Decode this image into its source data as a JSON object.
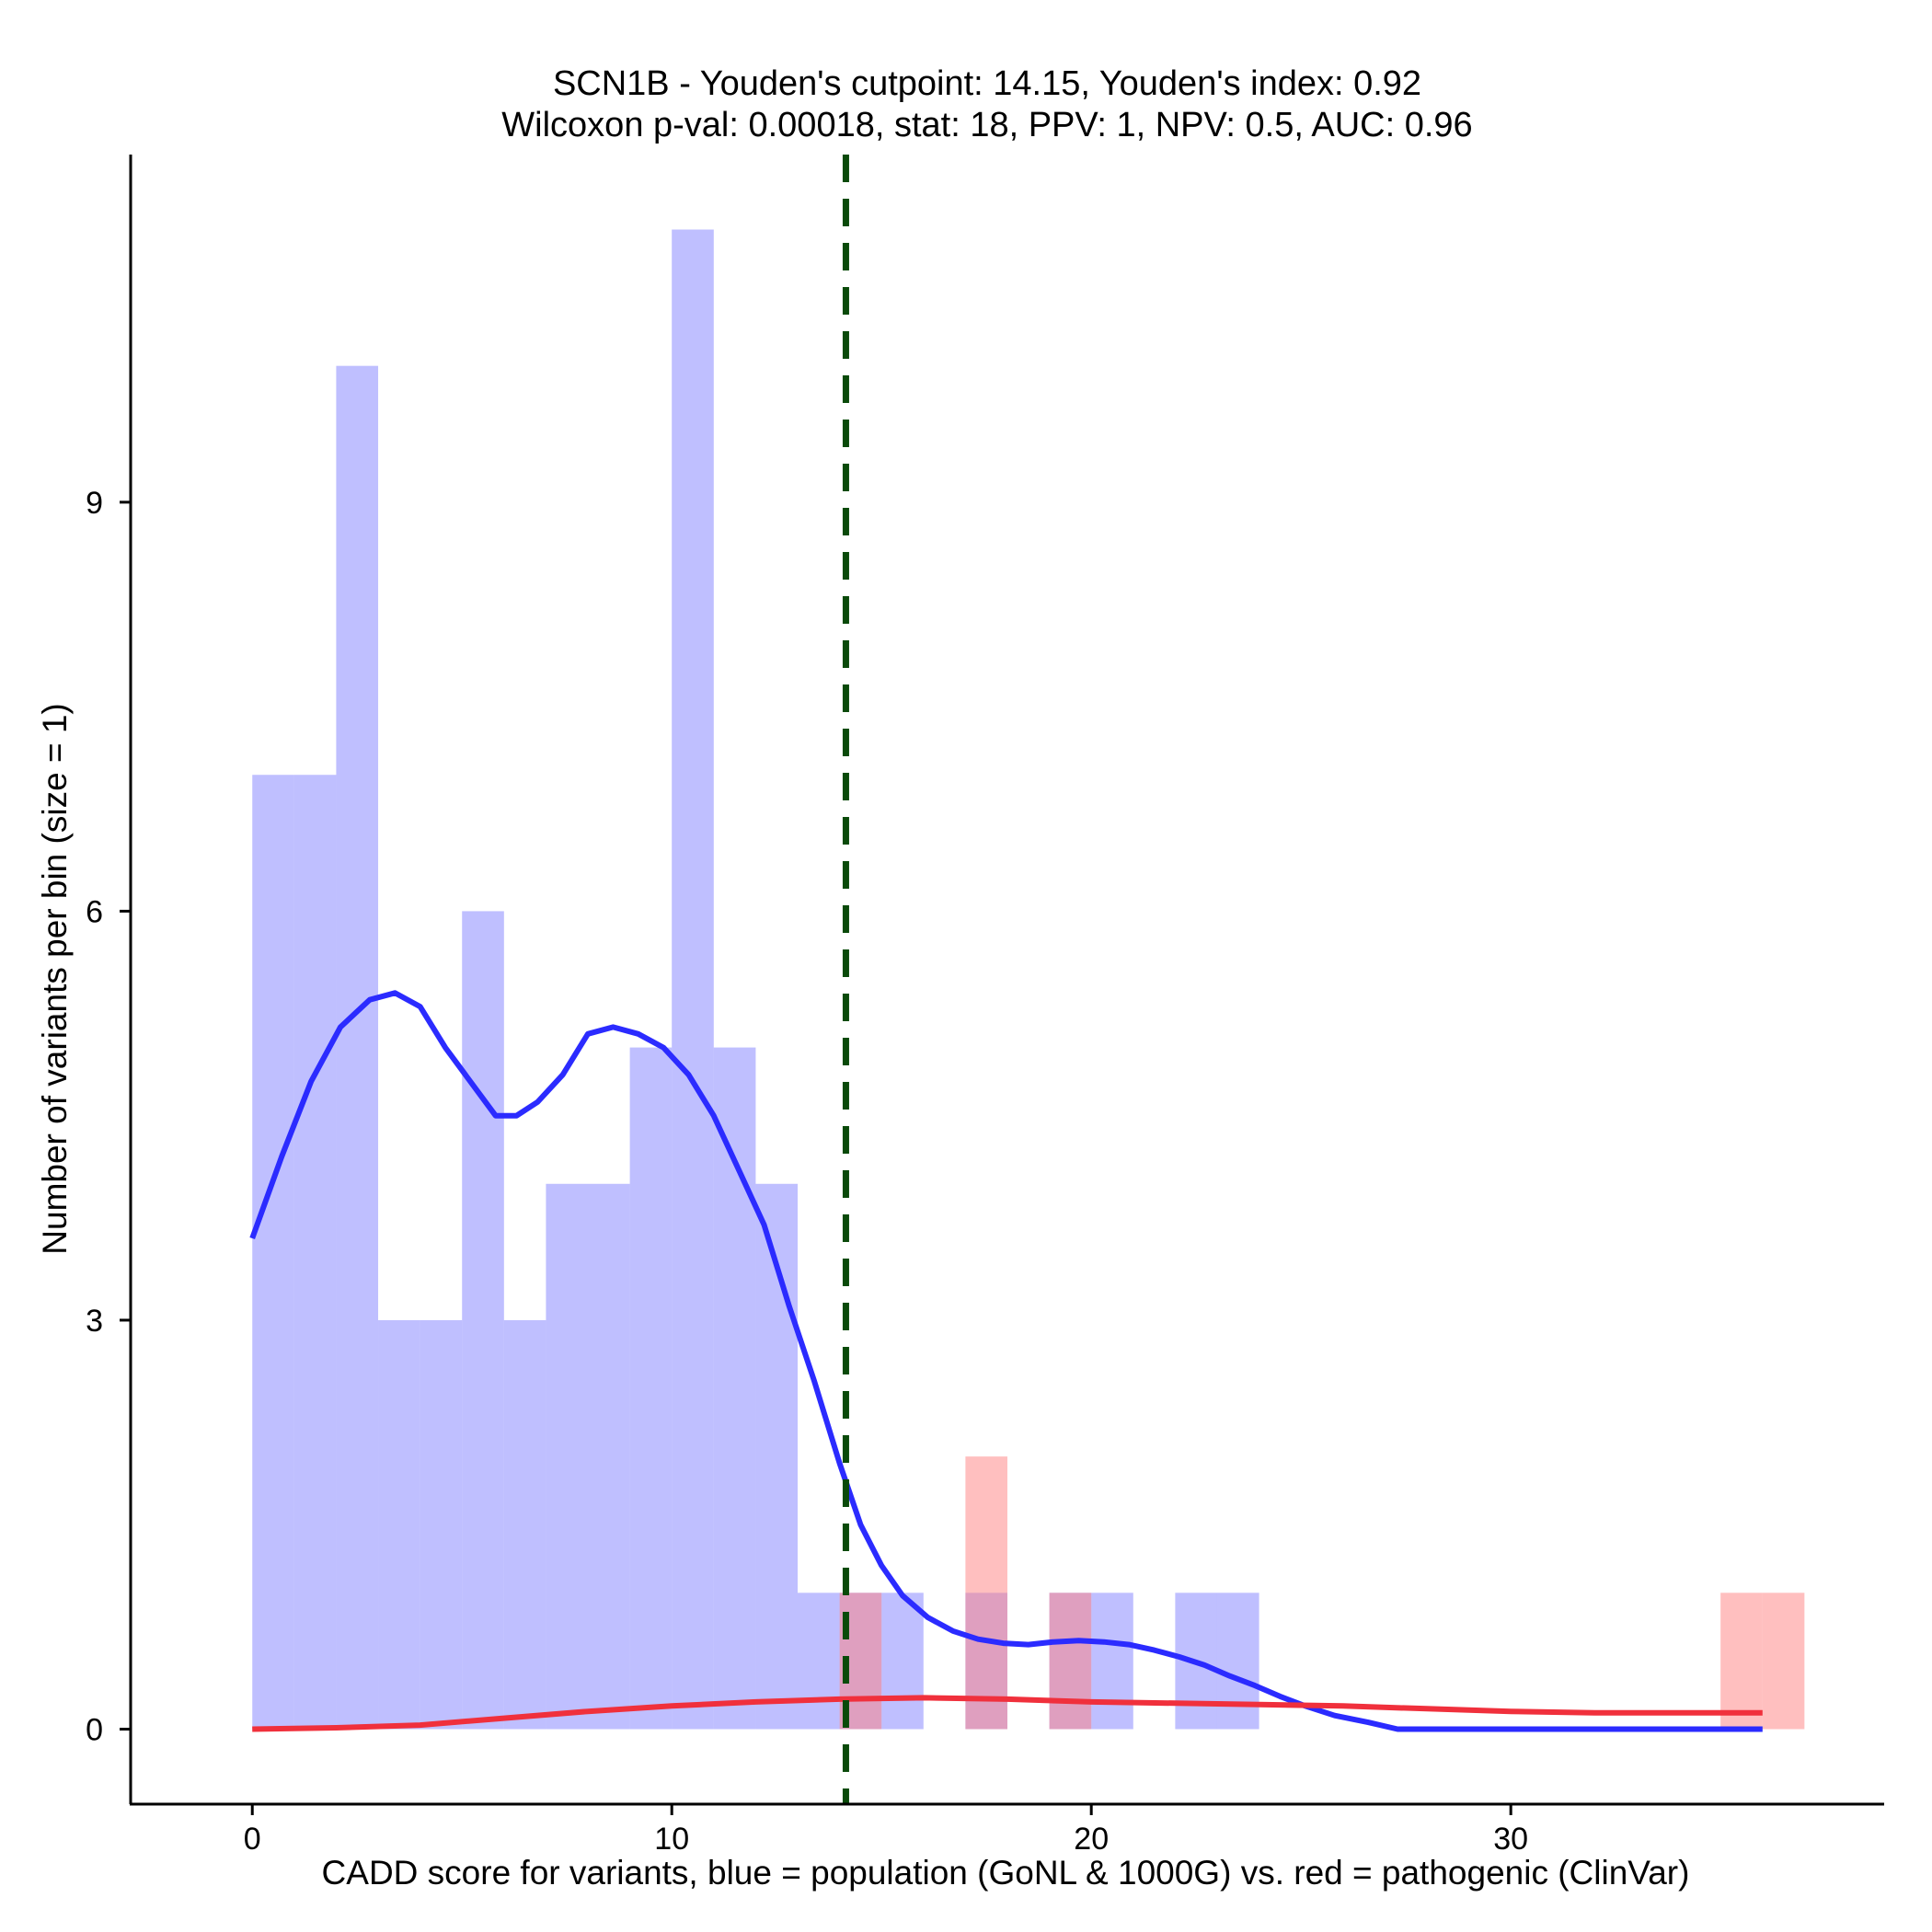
{
  "chart_data": {
    "type": "bar",
    "title": "SCN1B - Youden's cutpoint: 14.15, Youden's index: 0.92",
    "subtitle": "Wilcoxon p-val: 0.00018, stat: 18, PPV: 1, NPV: 0.5, AUC: 0.96",
    "xlabel": "CADD score for variants, blue = population (GoNL & 1000G) vs. red = pathogenic (ClinVar)",
    "ylabel": "Number of variants per bin (size = 1)",
    "xlim": [
      -2.9,
      38.9
    ],
    "ylim": [
      -0.55,
      11.55
    ],
    "xticks": [
      0,
      10,
      20,
      30
    ],
    "xtick_labels": [
      "0",
      "10",
      "20",
      "30"
    ],
    "yticks": [
      0,
      3,
      6,
      9
    ],
    "ytick_labels": [
      "0",
      "3",
      "6",
      "9"
    ],
    "cutpoint": 14.15,
    "bin_width": 1,
    "series": [
      {
        "name": "population (GoNL & 1000G)",
        "color": "#0000ff",
        "bins": [
          {
            "x0": 0,
            "count": 7
          },
          {
            "x0": 1,
            "count": 7
          },
          {
            "x0": 2,
            "count": 10
          },
          {
            "x0": 3,
            "count": 3
          },
          {
            "x0": 4,
            "count": 3
          },
          {
            "x0": 5,
            "count": 6
          },
          {
            "x0": 6,
            "count": 3
          },
          {
            "x0": 7,
            "count": 4
          },
          {
            "x0": 8,
            "count": 4
          },
          {
            "x0": 9,
            "count": 5
          },
          {
            "x0": 10,
            "count": 11
          },
          {
            "x0": 11,
            "count": 5
          },
          {
            "x0": 12,
            "count": 4
          },
          {
            "x0": 13,
            "count": 1
          },
          {
            "x0": 14,
            "count": 1
          },
          {
            "x0": 15,
            "count": 1
          },
          {
            "x0": 17,
            "count": 1
          },
          {
            "x0": 19,
            "count": 1
          },
          {
            "x0": 20,
            "count": 1
          },
          {
            "x0": 22,
            "count": 1
          },
          {
            "x0": 23,
            "count": 1
          }
        ],
        "density_curve": {
          "x": [
            0,
            0.7,
            1.4,
            2.1,
            2.8,
            3.4,
            4.0,
            4.6,
            5.2,
            5.8,
            6.3,
            6.8,
            7.4,
            8.0,
            8.6,
            9.2,
            9.8,
            10.4,
            11.0,
            11.6,
            12.2,
            12.8,
            13.4,
            14.0,
            14.5,
            15.0,
            15.5,
            16.1,
            16.7,
            17.3,
            17.9,
            18.5,
            19.1,
            19.7,
            20.3,
            20.9,
            21.5,
            22.1,
            22.7,
            23.3,
            23.9,
            24.5,
            25.1,
            25.8,
            26.6,
            27.3,
            28.0,
            30,
            32,
            34,
            36
          ],
          "y": [
            3.6,
            4.2,
            4.75,
            5.15,
            5.35,
            5.4,
            5.3,
            5.0,
            4.75,
            4.5,
            4.5,
            4.6,
            4.8,
            5.1,
            5.15,
            5.1,
            5.0,
            4.8,
            4.5,
            4.1,
            3.7,
            3.1,
            2.55,
            1.95,
            1.5,
            1.2,
            0.98,
            0.82,
            0.72,
            0.66,
            0.63,
            0.62,
            0.64,
            0.65,
            0.64,
            0.62,
            0.58,
            0.53,
            0.47,
            0.39,
            0.32,
            0.24,
            0.17,
            0.1,
            0.05,
            0.0,
            0.0,
            0.0,
            0.0,
            0.0,
            0.0
          ]
        }
      },
      {
        "name": "pathogenic (ClinVar)",
        "color": "#ff0000",
        "bins": [
          {
            "x0": 14,
            "count": 1
          },
          {
            "x0": 17,
            "count": 2
          },
          {
            "x0": 19,
            "count": 1
          },
          {
            "x0": 35,
            "count": 1
          },
          {
            "x0": 36,
            "count": 1
          }
        ],
        "density_curve": {
          "x": [
            0,
            2,
            4,
            6,
            8,
            10,
            12,
            14,
            16,
            18,
            20,
            22,
            24,
            26,
            28,
            30,
            32,
            34,
            36
          ],
          "y": [
            0.0,
            0.01,
            0.03,
            0.08,
            0.13,
            0.17,
            0.2,
            0.22,
            0.23,
            0.22,
            0.2,
            0.19,
            0.18,
            0.17,
            0.15,
            0.13,
            0.12,
            0.12,
            0.12
          ]
        }
      }
    ]
  }
}
